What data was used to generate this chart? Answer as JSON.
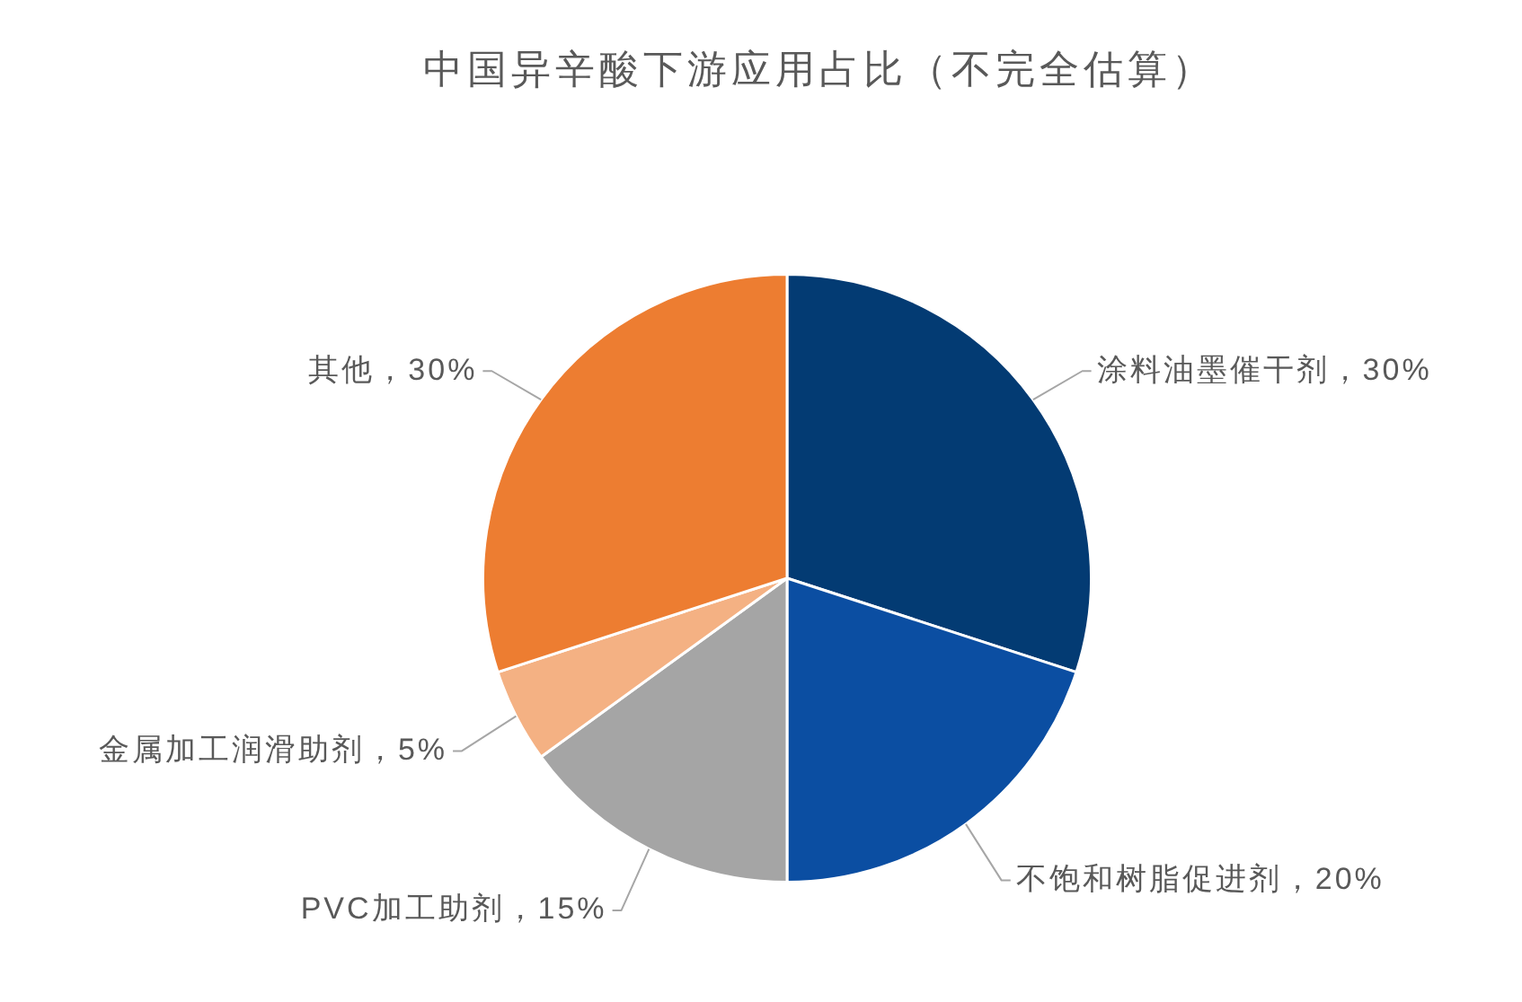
{
  "chart_data": {
    "type": "pie",
    "title": "中国异辛酸下游应用占比（不完全估算）",
    "categories": [
      "涂料油墨催干剂",
      "不饱和树脂促进剂",
      "PVC加工助剂",
      "金属加工润滑助剂",
      "其他"
    ],
    "values": [
      30,
      20,
      15,
      5,
      30
    ],
    "colors": [
      "#033b73",
      "#0b4ea2",
      "#a5a5a5",
      "#f4b183",
      "#ed7d31"
    ],
    "value_labels": [
      "，30%",
      "，20%",
      "，15%",
      "，5%",
      "，30%"
    ]
  }
}
